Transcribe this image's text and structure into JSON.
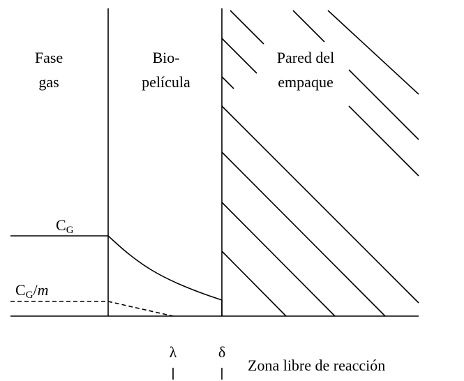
{
  "regions": [
    {
      "lines": [
        "Fase",
        "gas"
      ]
    },
    {
      "lines": [
        "Bio-",
        "película"
      ]
    },
    {
      "lines": [
        "Pared del",
        "empaque"
      ]
    }
  ],
  "concentration_labels": {
    "gas": {
      "main": "C",
      "sub": "G"
    },
    "liquid": {
      "main": "C",
      "sub": "G",
      "slash": "/",
      "divisor": "m"
    }
  },
  "positions": {
    "lambda": "λ",
    "delta": "δ"
  },
  "zone_label": "Zona libre de reacción"
}
